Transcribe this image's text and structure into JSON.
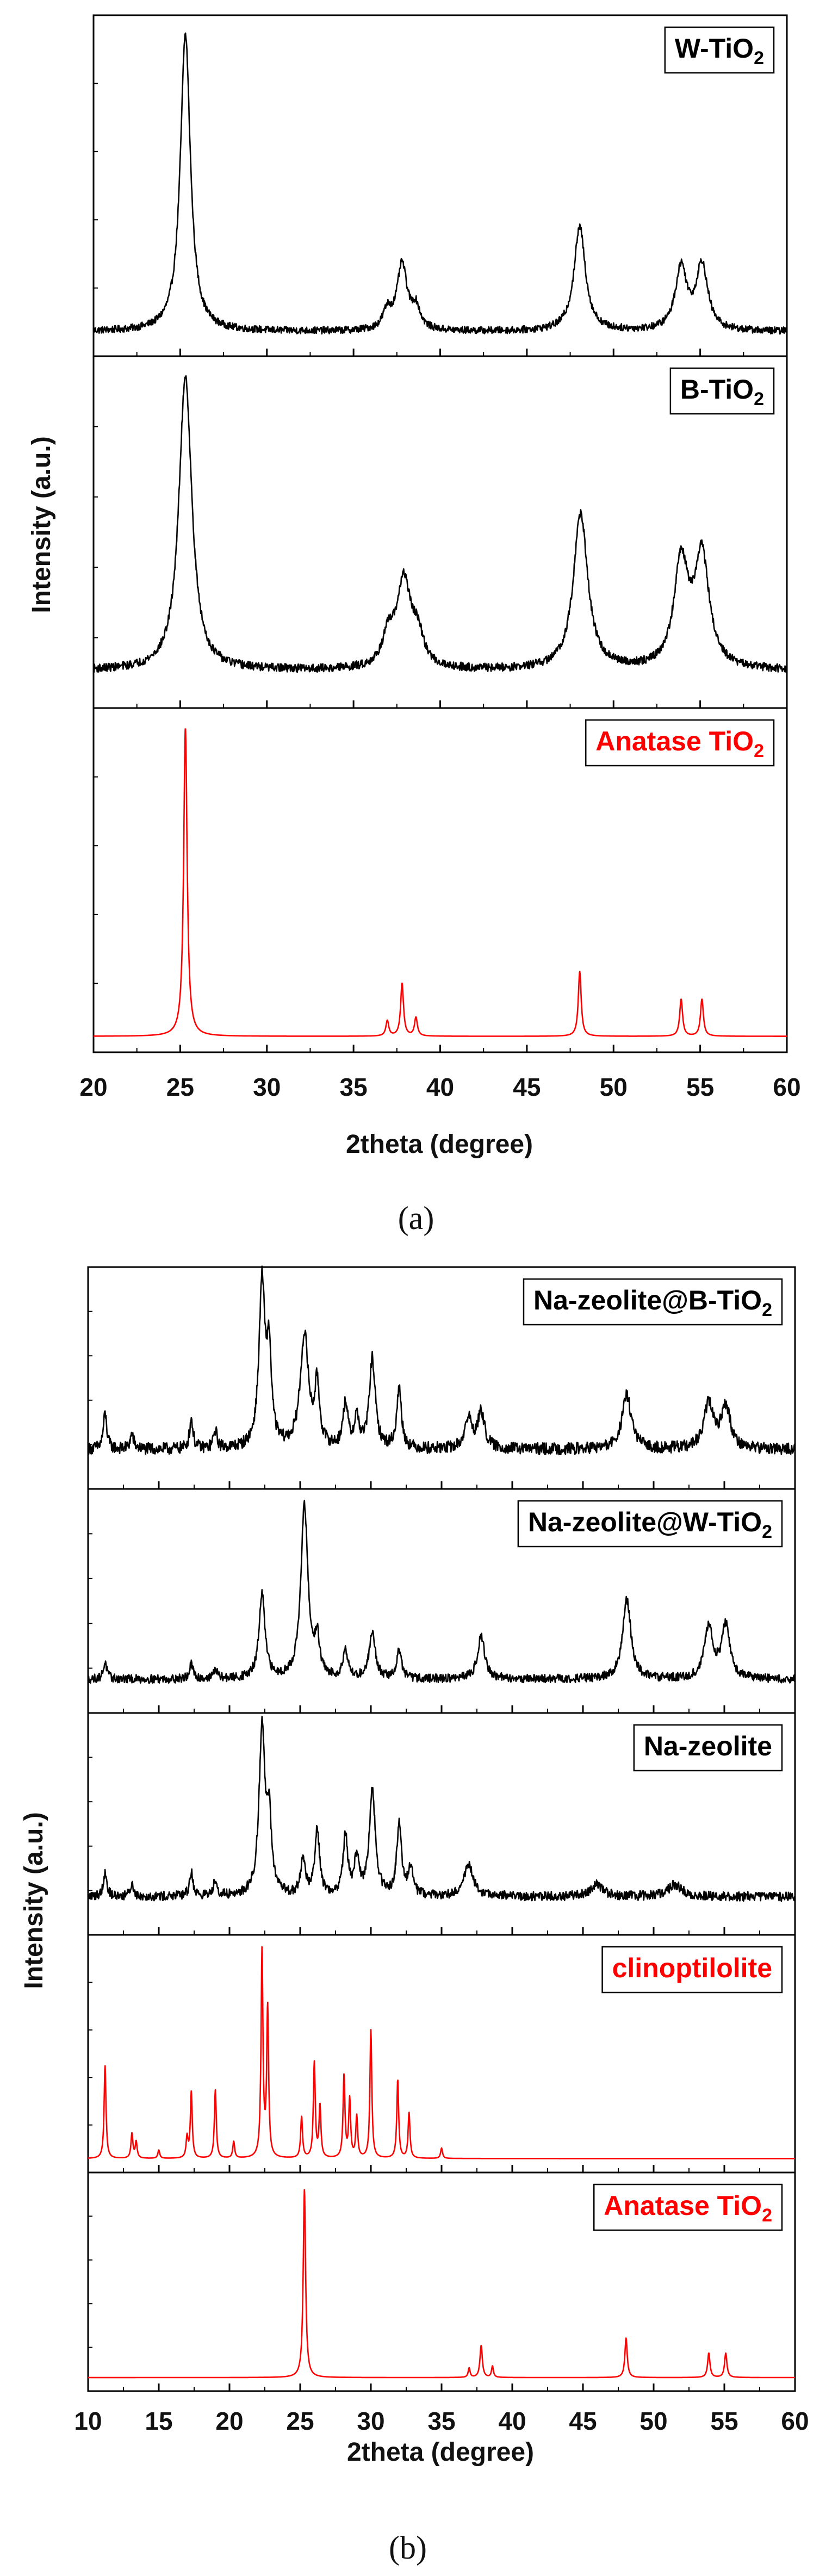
{
  "colors": {
    "measured": "#000000",
    "reference": "#ff0000",
    "frame": "#000000"
  },
  "chart_data": [
    {
      "type": "line",
      "caption": "(a)",
      "xlabel": "2theta (degree)",
      "ylabel": "Intensity (a.u.)",
      "xlim": [
        20,
        60
      ],
      "x_ticks": [
        20,
        25,
        30,
        35,
        40,
        45,
        50,
        55,
        60
      ],
      "grid": false,
      "panels": [
        {
          "name": "W-TiO2",
          "label": {
            "main": "W-TiO",
            "sub": "2"
          },
          "color": "black",
          "baseline": 0.05,
          "noise": 0.012,
          "peaks": [
            {
              "x": 25.3,
              "h": 1.0,
              "w": 0.35
            },
            {
              "x": 36.95,
              "h": 0.06,
              "w": 0.3
            },
            {
              "x": 37.8,
              "h": 0.22,
              "w": 0.35
            },
            {
              "x": 38.6,
              "h": 0.07,
              "w": 0.3
            },
            {
              "x": 48.05,
              "h": 0.35,
              "w": 0.4
            },
            {
              "x": 53.9,
              "h": 0.21,
              "w": 0.4
            },
            {
              "x": 55.1,
              "h": 0.22,
              "w": 0.4
            }
          ]
        },
        {
          "name": "B-TiO2",
          "label": {
            "main": "B-TiO",
            "sub": "2"
          },
          "color": "black",
          "baseline": 0.08,
          "noise": 0.012,
          "peaks": [
            {
              "x": 25.3,
              "h": 0.85,
              "w": 0.45
            },
            {
              "x": 37.0,
              "h": 0.08,
              "w": 0.4
            },
            {
              "x": 37.9,
              "h": 0.25,
              "w": 0.5
            },
            {
              "x": 38.7,
              "h": 0.08,
              "w": 0.4
            },
            {
              "x": 48.1,
              "h": 0.45,
              "w": 0.5
            },
            {
              "x": 53.9,
              "h": 0.3,
              "w": 0.5
            },
            {
              "x": 55.1,
              "h": 0.32,
              "w": 0.5
            }
          ]
        },
        {
          "name": "Anatase TiO2",
          "label": {
            "main": "Anatase TiO",
            "sub": "2"
          },
          "color": "red",
          "baseline": 0.02,
          "noise": 0,
          "peaks": [
            {
              "x": 25.3,
              "h": 1.0,
              "w": 0.12
            },
            {
              "x": 36.95,
              "h": 0.05,
              "w": 0.1
            },
            {
              "x": 37.8,
              "h": 0.17,
              "w": 0.1
            },
            {
              "x": 38.6,
              "h": 0.06,
              "w": 0.1
            },
            {
              "x": 48.05,
              "h": 0.21,
              "w": 0.1
            },
            {
              "x": 53.9,
              "h": 0.12,
              "w": 0.1
            },
            {
              "x": 55.1,
              "h": 0.12,
              "w": 0.1
            }
          ]
        }
      ]
    },
    {
      "type": "line",
      "caption": "(b)",
      "xlabel": "2theta (degree)",
      "ylabel": "Intensity (a.u.)",
      "xlim": [
        10,
        60
      ],
      "x_ticks": [
        10,
        15,
        20,
        25,
        30,
        35,
        40,
        45,
        50,
        55,
        60
      ],
      "grid": false,
      "panels": [
        {
          "name": "Na-zeolite@B-TiO2",
          "label": {
            "main": "Na-zeolite@B-TiO",
            "sub": "2"
          },
          "color": "black",
          "baseline": 0.1,
          "noise": 0.02,
          "peaks": [
            {
              "x": 11.2,
              "h": 0.12,
              "w": 0.15
            },
            {
              "x": 13.1,
              "h": 0.05,
              "w": 0.15
            },
            {
              "x": 17.3,
              "h": 0.1,
              "w": 0.15
            },
            {
              "x": 19.0,
              "h": 0.06,
              "w": 0.15
            },
            {
              "x": 22.3,
              "h": 0.55,
              "w": 0.25
            },
            {
              "x": 22.8,
              "h": 0.3,
              "w": 0.2
            },
            {
              "x": 25.3,
              "h": 0.38,
              "w": 0.35
            },
            {
              "x": 26.2,
              "h": 0.2,
              "w": 0.2
            },
            {
              "x": 28.2,
              "h": 0.15,
              "w": 0.2
            },
            {
              "x": 29.0,
              "h": 0.1,
              "w": 0.2
            },
            {
              "x": 30.1,
              "h": 0.3,
              "w": 0.25
            },
            {
              "x": 32.0,
              "h": 0.2,
              "w": 0.2
            },
            {
              "x": 36.9,
              "h": 0.1,
              "w": 0.3
            },
            {
              "x": 37.8,
              "h": 0.12,
              "w": 0.3
            },
            {
              "x": 48.1,
              "h": 0.18,
              "w": 0.4
            },
            {
              "x": 53.9,
              "h": 0.15,
              "w": 0.4
            },
            {
              "x": 55.1,
              "h": 0.14,
              "w": 0.4
            }
          ]
        },
        {
          "name": "Na-zeolite@W-TiO2",
          "label": {
            "main": "Na-zeolite@W-TiO",
            "sub": "2"
          },
          "color": "black",
          "baseline": 0.1,
          "noise": 0.018,
          "peaks": [
            {
              "x": 11.2,
              "h": 0.07,
              "w": 0.15
            },
            {
              "x": 17.3,
              "h": 0.06,
              "w": 0.15
            },
            {
              "x": 19.0,
              "h": 0.04,
              "w": 0.15
            },
            {
              "x": 22.3,
              "h": 0.35,
              "w": 0.25
            },
            {
              "x": 25.3,
              "h": 0.72,
              "w": 0.3
            },
            {
              "x": 26.2,
              "h": 0.15,
              "w": 0.2
            },
            {
              "x": 28.2,
              "h": 0.12,
              "w": 0.2
            },
            {
              "x": 30.1,
              "h": 0.2,
              "w": 0.25
            },
            {
              "x": 32.0,
              "h": 0.12,
              "w": 0.2
            },
            {
              "x": 37.8,
              "h": 0.18,
              "w": 0.3
            },
            {
              "x": 48.1,
              "h": 0.33,
              "w": 0.35
            },
            {
              "x": 53.9,
              "h": 0.22,
              "w": 0.35
            },
            {
              "x": 55.1,
              "h": 0.22,
              "w": 0.35
            }
          ]
        },
        {
          "name": "Na-zeolite",
          "label": {
            "main": "Na-zeolite",
            "sub": ""
          },
          "color": "black",
          "baseline": 0.12,
          "noise": 0.02,
          "peaks": [
            {
              "x": 11.2,
              "h": 0.1,
              "w": 0.15
            },
            {
              "x": 13.1,
              "h": 0.05,
              "w": 0.15
            },
            {
              "x": 17.3,
              "h": 0.1,
              "w": 0.15
            },
            {
              "x": 19.0,
              "h": 0.07,
              "w": 0.15
            },
            {
              "x": 22.3,
              "h": 0.7,
              "w": 0.25
            },
            {
              "x": 22.8,
              "h": 0.3,
              "w": 0.2
            },
            {
              "x": 25.2,
              "h": 0.15,
              "w": 0.2
            },
            {
              "x": 26.2,
              "h": 0.28,
              "w": 0.2
            },
            {
              "x": 28.2,
              "h": 0.25,
              "w": 0.2
            },
            {
              "x": 29.0,
              "h": 0.15,
              "w": 0.2
            },
            {
              "x": 30.1,
              "h": 0.45,
              "w": 0.25
            },
            {
              "x": 32.0,
              "h": 0.3,
              "w": 0.2
            },
            {
              "x": 32.8,
              "h": 0.12,
              "w": 0.2
            },
            {
              "x": 36.9,
              "h": 0.13,
              "w": 0.4
            },
            {
              "x": 46.0,
              "h": 0.05,
              "w": 0.5
            },
            {
              "x": 51.5,
              "h": 0.05,
              "w": 0.6
            }
          ]
        },
        {
          "name": "clinoptilolite",
          "label": {
            "main": "clinoptilolite",
            "sub": ""
          },
          "color": "red",
          "baseline": 0.02,
          "noise": 0,
          "peaks": [
            {
              "x": 11.2,
              "h": 0.45,
              "w": 0.08
            },
            {
              "x": 13.1,
              "h": 0.12,
              "w": 0.08
            },
            {
              "x": 13.4,
              "h": 0.08,
              "w": 0.08
            },
            {
              "x": 15.0,
              "h": 0.04,
              "w": 0.08
            },
            {
              "x": 17.0,
              "h": 0.1,
              "w": 0.08
            },
            {
              "x": 17.3,
              "h": 0.32,
              "w": 0.08
            },
            {
              "x": 19.0,
              "h": 0.33,
              "w": 0.08
            },
            {
              "x": 20.3,
              "h": 0.08,
              "w": 0.08
            },
            {
              "x": 22.3,
              "h": 1.0,
              "w": 0.08
            },
            {
              "x": 22.7,
              "h": 0.72,
              "w": 0.08
            },
            {
              "x": 25.1,
              "h": 0.2,
              "w": 0.08
            },
            {
              "x": 26.0,
              "h": 0.46,
              "w": 0.08
            },
            {
              "x": 26.4,
              "h": 0.25,
              "w": 0.08
            },
            {
              "x": 28.1,
              "h": 0.4,
              "w": 0.08
            },
            {
              "x": 28.5,
              "h": 0.28,
              "w": 0.08
            },
            {
              "x": 29.0,
              "h": 0.2,
              "w": 0.08
            },
            {
              "x": 30.0,
              "h": 0.62,
              "w": 0.08
            },
            {
              "x": 31.9,
              "h": 0.38,
              "w": 0.08
            },
            {
              "x": 32.7,
              "h": 0.22,
              "w": 0.08
            },
            {
              "x": 35.0,
              "h": 0.05,
              "w": 0.08
            }
          ]
        },
        {
          "name": "Anatase TiO2",
          "label": {
            "main": "Anatase TiO",
            "sub": "2"
          },
          "color": "red",
          "baseline": 0.02,
          "noise": 0,
          "peaks": [
            {
              "x": 25.3,
              "h": 1.0,
              "w": 0.1
            },
            {
              "x": 36.95,
              "h": 0.05,
              "w": 0.08
            },
            {
              "x": 37.8,
              "h": 0.17,
              "w": 0.1
            },
            {
              "x": 38.6,
              "h": 0.06,
              "w": 0.08
            },
            {
              "x": 48.05,
              "h": 0.21,
              "w": 0.1
            },
            {
              "x": 53.9,
              "h": 0.13,
              "w": 0.1
            },
            {
              "x": 55.1,
              "h": 0.13,
              "w": 0.1
            }
          ]
        }
      ]
    }
  ]
}
